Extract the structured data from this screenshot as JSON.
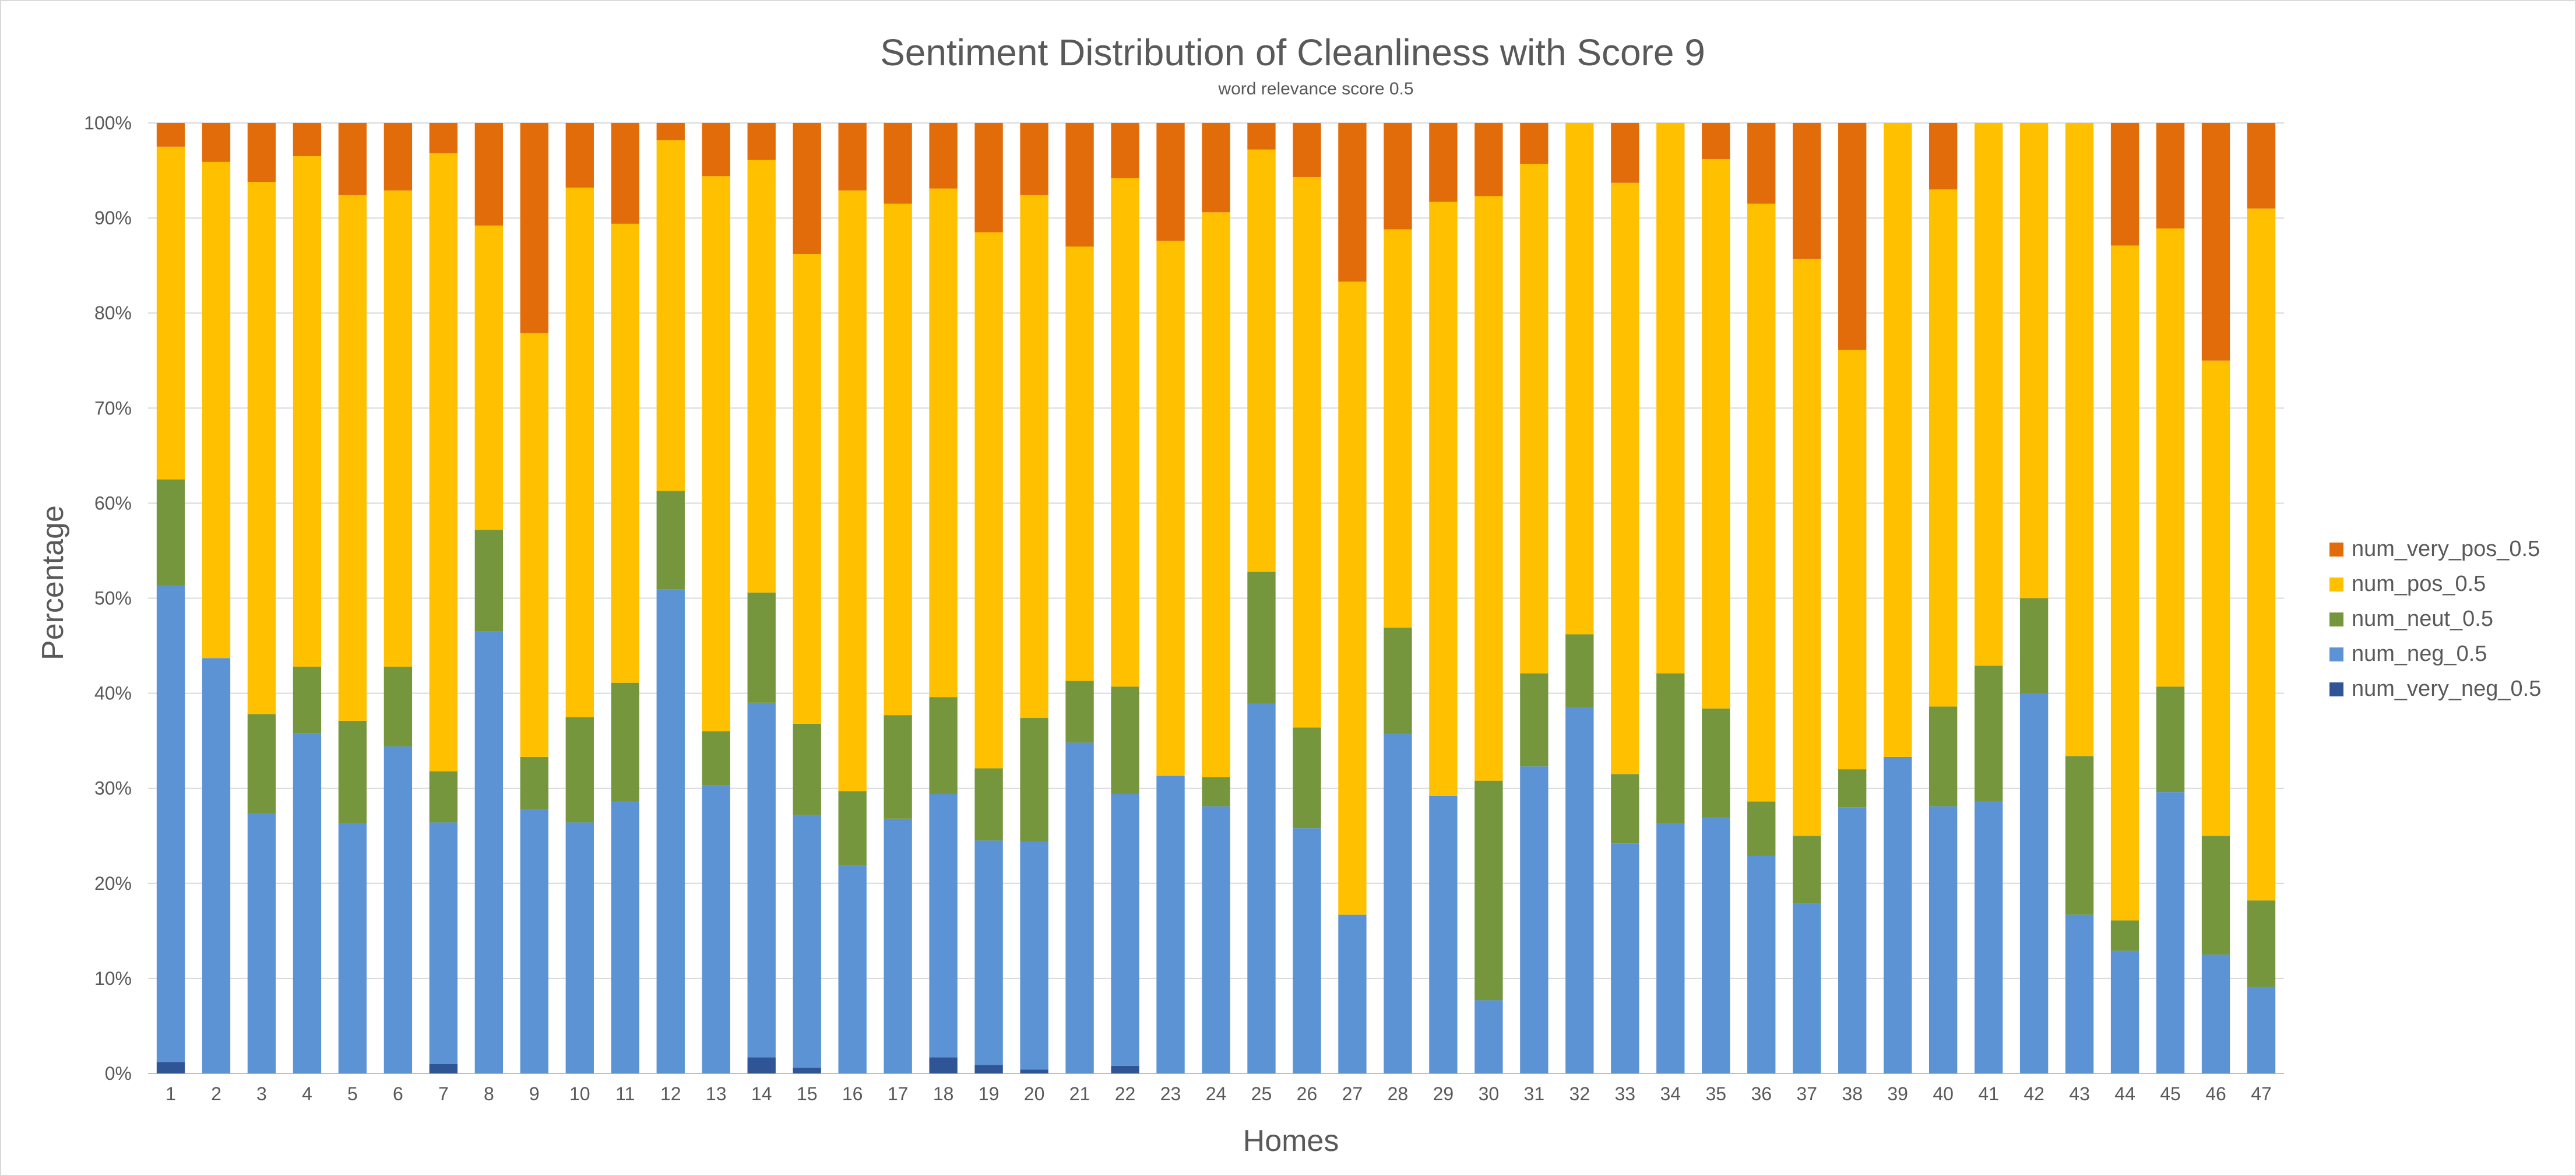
{
  "chart_data": {
    "type": "bar",
    "stacked": "100%",
    "title": "Sentiment Distribution of Cleanliness with Score 9",
    "subtitle": "word relevance score 0.5",
    "xlabel": "Homes",
    "ylabel": "Percentage",
    "ylim": [
      0,
      100
    ],
    "yticks": [
      "0%",
      "10%",
      "20%",
      "30%",
      "40%",
      "50%",
      "60%",
      "70%",
      "80%",
      "90%",
      "100%"
    ],
    "grid": true,
    "legend_position": "right",
    "categories": [
      "1",
      "2",
      "3",
      "4",
      "5",
      "6",
      "7",
      "8",
      "9",
      "10",
      "11",
      "12",
      "13",
      "14",
      "15",
      "16",
      "17",
      "18",
      "19",
      "20",
      "21",
      "22",
      "23",
      "24",
      "25",
      "26",
      "27",
      "28",
      "29",
      "30",
      "31",
      "32",
      "33",
      "34",
      "35",
      "36",
      "37",
      "38",
      "39",
      "40",
      "41",
      "42",
      "43",
      "44",
      "45",
      "46",
      "47"
    ],
    "series": [
      {
        "name": "num_very_neg_0.5",
        "color": "#2F5597",
        "values": [
          1.2,
          0,
          0,
          0,
          0,
          0,
          1.0,
          0,
          0,
          0,
          0,
          0,
          0,
          1.7,
          0.6,
          0,
          0,
          1.7,
          0.9,
          0.4,
          0,
          0.8,
          0,
          0,
          0,
          0,
          0,
          0,
          0,
          0,
          0,
          0,
          0,
          0,
          0,
          0,
          0,
          0,
          0,
          0,
          0,
          0,
          0,
          0,
          0,
          0,
          0
        ]
      },
      {
        "name": "num_neg_0.5",
        "color": "#5B93D5",
        "values": [
          50.1,
          43.7,
          27.3,
          35.8,
          26.3,
          34.4,
          25.4,
          46.5,
          27.8,
          26.4,
          28.6,
          50.9,
          30.3,
          37.3,
          26.6,
          21.9,
          26.8,
          27.7,
          23.6,
          24.0,
          34.8,
          28.6,
          31.3,
          28.1,
          38.9,
          25.8,
          16.7,
          35.7,
          29.2,
          7.7,
          32.3,
          38.5,
          24.2,
          26.3,
          26.9,
          22.9,
          17.9,
          28.0,
          33.3,
          28.1,
          28.6,
          40.0,
          16.7,
          12.9,
          29.6,
          12.5,
          9.1
        ]
      },
      {
        "name": "num_neut_0.5",
        "color": "#76963E",
        "values": [
          11.2,
          0,
          10.5,
          7.0,
          10.8,
          8.4,
          5.4,
          10.7,
          5.5,
          11.1,
          12.5,
          10.4,
          5.7,
          11.6,
          9.6,
          7.8,
          10.9,
          10.2,
          7.6,
          13.0,
          6.5,
          11.3,
          0,
          3.1,
          13.9,
          10.6,
          0,
          11.2,
          0,
          23.1,
          9.8,
          7.7,
          7.3,
          15.8,
          11.5,
          5.7,
          7.1,
          4.0,
          0,
          10.5,
          14.3,
          10.0,
          16.7,
          3.2,
          11.1,
          12.5,
          9.1
        ]
      },
      {
        "name": "num_pos_0.5",
        "color": "#FFC000",
        "values": [
          35.0,
          52.2,
          56.0,
          53.7,
          55.3,
          50.1,
          65.0,
          32.0,
          44.6,
          55.7,
          48.3,
          36.9,
          58.4,
          45.5,
          49.4,
          63.2,
          53.8,
          53.5,
          56.4,
          55.0,
          45.7,
          53.5,
          56.3,
          59.4,
          44.4,
          57.9,
          66.6,
          41.9,
          62.5,
          61.5,
          53.6,
          53.8,
          62.2,
          57.9,
          57.8,
          62.9,
          60.7,
          44.1,
          66.7,
          54.4,
          57.1,
          50.0,
          66.6,
          71.0,
          48.2,
          50.0,
          72.8
        ]
      },
      {
        "name": "num_very_pos_0.5",
        "color": "#E36C0A",
        "values": [
          2.5,
          4.1,
          6.2,
          3.5,
          7.6,
          7.1,
          3.2,
          10.8,
          22.1,
          6.8,
          10.6,
          1.8,
          5.6,
          3.9,
          13.8,
          7.1,
          8.5,
          6.9,
          11.5,
          7.6,
          13.0,
          5.8,
          12.4,
          9.4,
          2.8,
          5.7,
          16.7,
          11.2,
          8.3,
          7.7,
          4.3,
          0,
          6.3,
          0,
          3.8,
          8.5,
          14.3,
          23.9,
          0,
          7.0,
          0,
          0,
          0,
          12.9,
          11.1,
          25.0,
          9.0
        ]
      }
    ],
    "legend_order": [
      "num_very_pos_0.5",
      "num_pos_0.5",
      "num_neut_0.5",
      "num_neg_0.5",
      "num_very_neg_0.5"
    ]
  }
}
